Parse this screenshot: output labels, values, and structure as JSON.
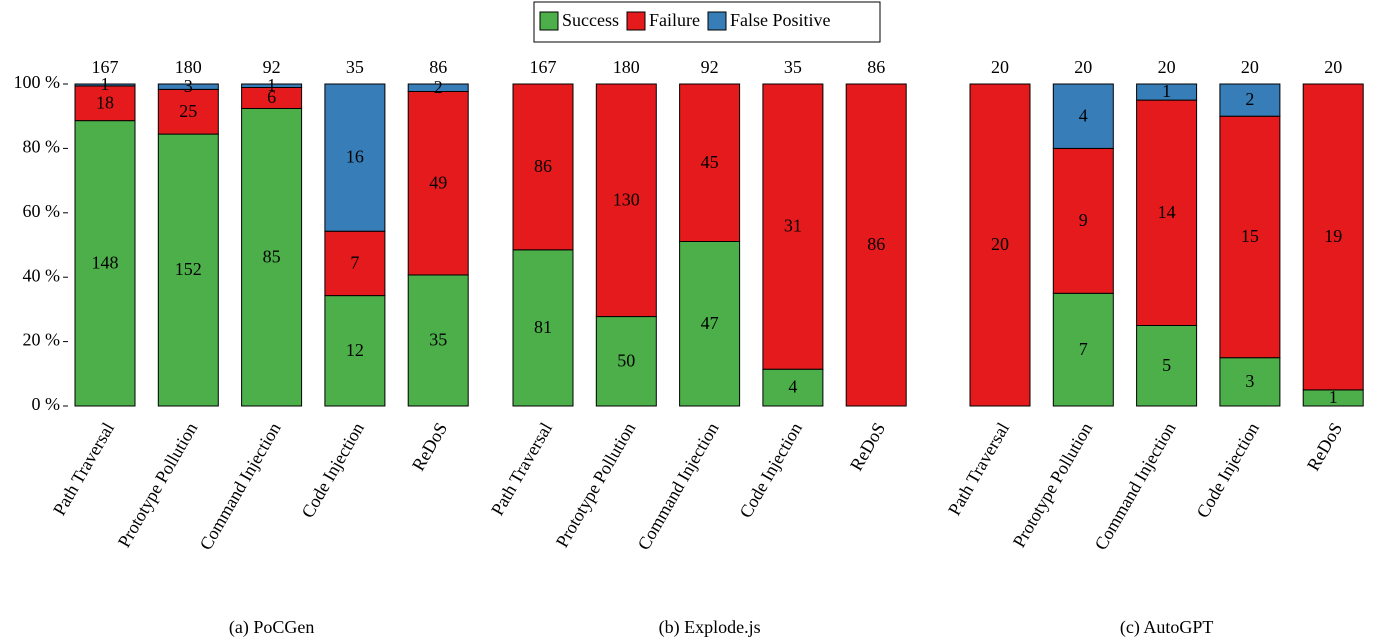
{
  "chart_data": {
    "type": "bar",
    "stacking": "percent",
    "categories": [
      "Path Traversal",
      "Prototype Pollution",
      "Command Injection",
      "Code Injection",
      "ReDoS"
    ],
    "series": [
      {
        "name": "Success",
        "color": "#4daf4a"
      },
      {
        "name": "Failure",
        "color": "#e41a1c"
      },
      {
        "name": "False Positive",
        "color": "#377eb8"
      }
    ],
    "ylim": [
      0,
      100
    ],
    "yticks": [
      {
        "value": 0,
        "label": "0 %"
      },
      {
        "value": 20,
        "label": "20 %"
      },
      {
        "value": 40,
        "label": "40 %"
      },
      {
        "value": 60,
        "label": "60 %"
      },
      {
        "value": 80,
        "label": "80 %"
      },
      {
        "value": 100,
        "label": "100 %"
      }
    ],
    "panels": [
      {
        "caption": "(a) PoCGen",
        "totals": [
          167,
          180,
          92,
          35,
          86
        ],
        "values": [
          [
            148,
            152,
            85,
            12,
            35
          ],
          [
            18,
            25,
            6,
            7,
            49
          ],
          [
            1,
            3,
            1,
            16,
            2
          ]
        ]
      },
      {
        "caption": "(b) Explode.js",
        "totals": [
          167,
          180,
          92,
          35,
          86
        ],
        "values": [
          [
            81,
            50,
            47,
            4,
            0
          ],
          [
            86,
            130,
            45,
            31,
            86
          ],
          [
            0,
            0,
            0,
            0,
            0
          ]
        ]
      },
      {
        "caption": "(c) AutoGPT",
        "totals": [
          20,
          20,
          20,
          20,
          20
        ],
        "values": [
          [
            0,
            7,
            5,
            3,
            1
          ],
          [
            20,
            9,
            14,
            15,
            19
          ],
          [
            0,
            4,
            1,
            2,
            0
          ]
        ]
      }
    ]
  }
}
